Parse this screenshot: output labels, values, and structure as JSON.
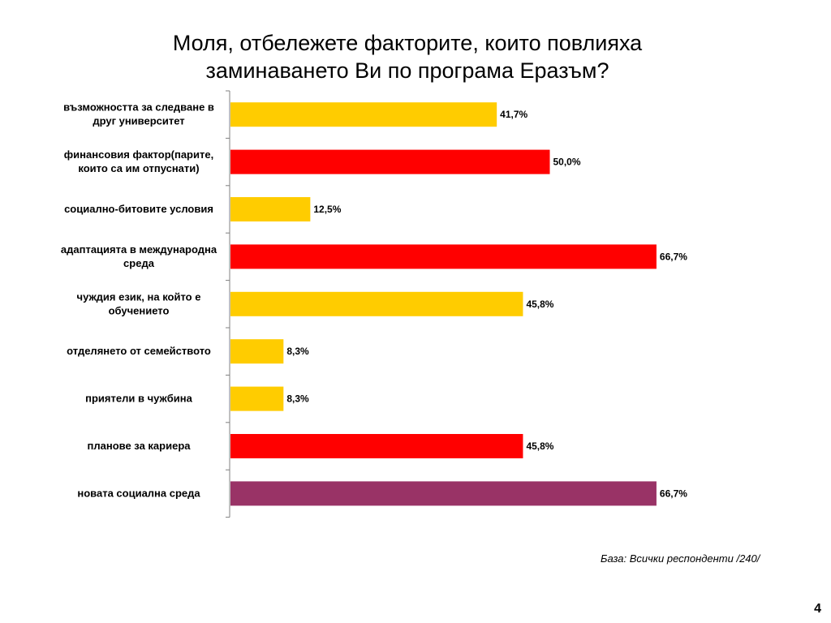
{
  "title": {
    "line1": "Моля, отбележете факторите, които повлияха",
    "line2": "заминаването Ви по програма Еразъм?"
  },
  "chart_data": {
    "type": "bar",
    "orientation": "horizontal",
    "xlim": [
      0,
      100
    ],
    "grid": false,
    "categories": [
      [
        "възможността за следване в",
        "друг университет"
      ],
      [
        "финансовия фактор(парите,",
        "които са им отпуснати)"
      ],
      [
        "социално-битовите условия"
      ],
      [
        "адаптацията в международна",
        "среда"
      ],
      [
        "чуждия език, на който е",
        "обучението"
      ],
      [
        "отделянето от семейството"
      ],
      [
        "приятели в чужбина"
      ],
      [
        "планове за кариера"
      ],
      [
        "новата социална среда"
      ]
    ],
    "values": [
      41.7,
      50.0,
      12.5,
      66.7,
      45.8,
      8.3,
      8.3,
      45.8,
      66.7
    ],
    "value_labels": [
      "41,7%",
      "50,0%",
      "12,5%",
      "66,7%",
      "45,8%",
      "8,3%",
      "8,3%",
      "45,8%",
      "66,7%"
    ],
    "bar_colors": [
      "#FFCC00",
      "#FF0000",
      "#FFCC00",
      "#FF0000",
      "#FFCC00",
      "#FFCC00",
      "#FFCC00",
      "#FF0000",
      "#993366"
    ]
  },
  "footer": {
    "base_note": "База: Всички респонденти /240/",
    "page_number": "4"
  }
}
